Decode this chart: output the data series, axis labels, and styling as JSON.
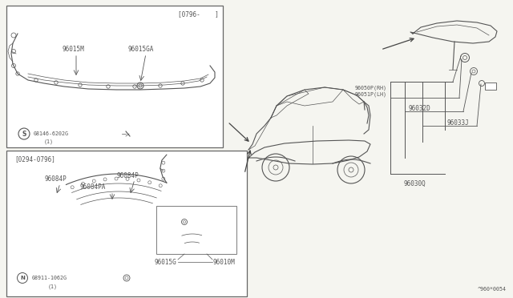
{
  "bg_color": "#f5f5f0",
  "fig_width": 6.4,
  "fig_height": 3.72,
  "dpi": 100,
  "diagram_label": "^960*0054",
  "box1_label": "[0796-    ]",
  "box2_label": "[0294-0796]",
  "text_color": "#555555",
  "line_color": "#555555",
  "border_color": "#666666",
  "lw_main": 0.8,
  "lw_thin": 0.5,
  "fs_label": 5.5,
  "fs_small": 4.8
}
